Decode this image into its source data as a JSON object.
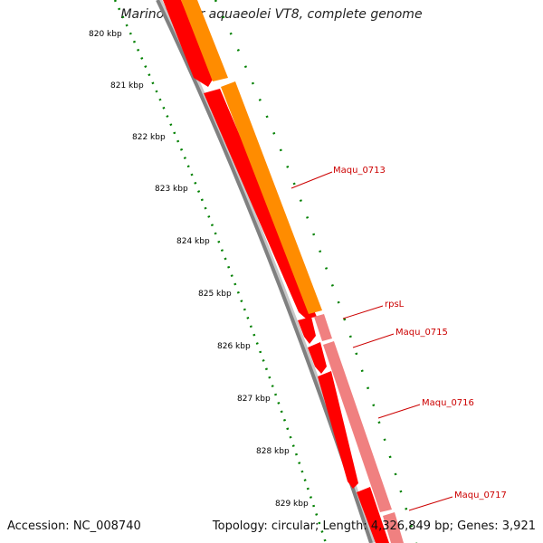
{
  "map": {
    "title": "Marinobacter aquaeolei VT8, complete genome",
    "accession": "Accession: NC_008740",
    "summary": "Topology: circular; Length: 4,326,849 bp; Genes: 3,921",
    "ticks": [
      "820 kbp",
      "821 kbp",
      "822 kbp",
      "823 kbp",
      "824 kbp",
      "825 kbp",
      "826 kbp",
      "827 kbp",
      "828 kbp",
      "829 kbp"
    ],
    "genes": [
      {
        "label": "Maqu_0713",
        "color": "#cc0000"
      },
      {
        "label": "rpsL",
        "color": "#cc0000"
      },
      {
        "label": "Maqu_0715",
        "color": "#cc0000"
      },
      {
        "label": "Maqu_0716",
        "color": "#cc0000"
      },
      {
        "label": "Maqu_0717",
        "color": "#cc0000"
      }
    ],
    "colors": {
      "cds": "#ff0000",
      "gene": "#ff8c00",
      "gene_light": "#f08080",
      "backbone": "#808080",
      "ticks": "#008000"
    }
  }
}
